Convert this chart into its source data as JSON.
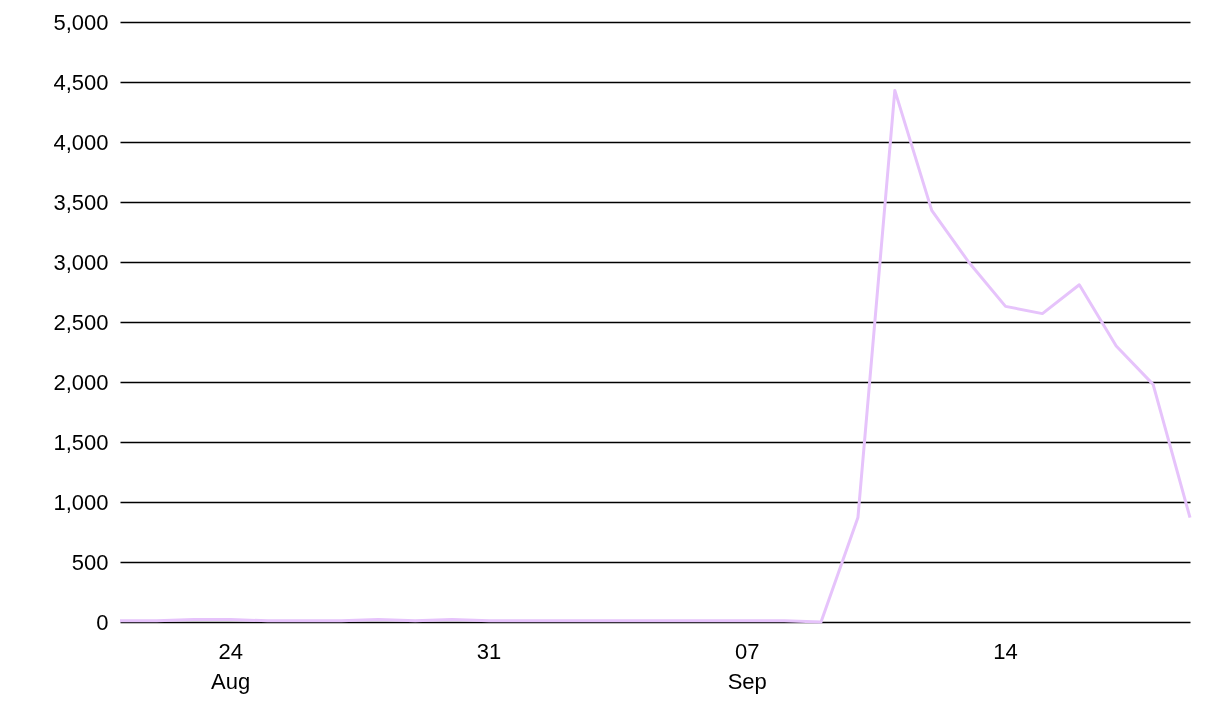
{
  "chart_data": {
    "type": "line",
    "x": [
      "--08-21",
      "--08-22",
      "--08-23",
      "--08-24",
      "--08-25",
      "--08-26",
      "--08-27",
      "--08-28",
      "--08-29",
      "--08-30",
      "--08-31",
      "--09-01",
      "--09-02",
      "--09-03",
      "--09-04",
      "--09-05",
      "--09-06",
      "--09-07",
      "--09-08",
      "--09-09",
      "--09-10",
      "--09-11",
      "--09-12",
      "--09-13",
      "--09-14",
      "--09-15",
      "--09-16",
      "--09-17",
      "--09-18",
      "--09-19"
    ],
    "series": [
      {
        "color": "#e6c3fb",
        "values": [
          10,
          10,
          20,
          20,
          10,
          10,
          10,
          20,
          10,
          20,
          10,
          10,
          10,
          10,
          10,
          10,
          10,
          10,
          10,
          0,
          870,
          4430,
          3430,
          3000,
          2630,
          2570,
          2810,
          2300,
          1980,
          870
        ]
      }
    ],
    "xlim": [
      "--08-21",
      "--09-19"
    ],
    "xticks": [
      {
        "value": "--08-24",
        "label": "24\nAug"
      },
      {
        "value": "--08-31",
        "label": "31"
      },
      {
        "value": "--09-07",
        "label": "07\nSep"
      },
      {
        "value": "--09-14",
        "label": "14"
      }
    ],
    "ylim": [
      0,
      5000
    ],
    "yticks": [
      0,
      500,
      {
        "value": 1000,
        "label": "1,000"
      },
      {
        "value": 1500,
        "label": "1,500"
      },
      {
        "value": 2000,
        "label": "2,000"
      },
      {
        "value": 2500,
        "label": "2,500"
      },
      {
        "value": 3000,
        "label": "3,000"
      },
      {
        "value": 3500,
        "label": "3,500"
      },
      {
        "value": 4000,
        "label": "4,000"
      },
      {
        "value": 4500,
        "label": "4,500"
      },
      {
        "value": 5000,
        "label": "5,000"
      }
    ],
    "grid": "y",
    "marker": "none",
    "line_style": "solid",
    "legend": false
  }
}
